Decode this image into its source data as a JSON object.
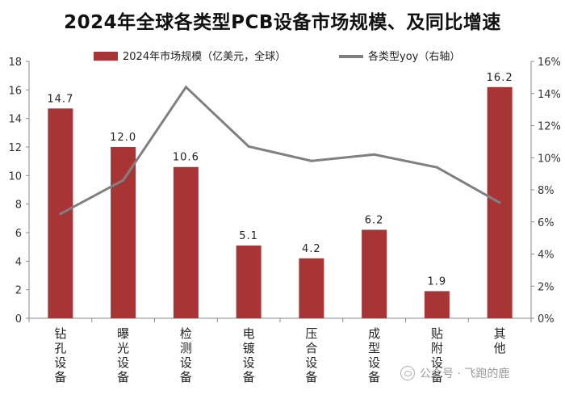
{
  "chart_data": {
    "type": "bar",
    "title": "2024年全球各类型PCB设备市场规模、及同比增速",
    "categories": [
      [
        "钻",
        "孔",
        "设",
        "备"
      ],
      [
        "曝",
        "光",
        "设",
        "备"
      ],
      [
        "检",
        "测",
        "设",
        "备"
      ],
      [
        "电",
        "镀",
        "设",
        "备"
      ],
      [
        "压",
        "合",
        "设",
        "备"
      ],
      [
        "成",
        "型",
        "设",
        "备"
      ],
      [
        "贴",
        "附",
        "设",
        "备"
      ],
      [
        "其",
        "他"
      ]
    ],
    "left_axis": {
      "ylim": [
        0,
        18
      ],
      "ticks": [
        0,
        2,
        4,
        6,
        8,
        10,
        12,
        14,
        16,
        18
      ]
    },
    "right_axis": {
      "ylim": [
        0,
        16
      ],
      "ticks": [
        "0%",
        "2%",
        "4%",
        "6%",
        "8%",
        "10%",
        "12%",
        "14%",
        "16%"
      ]
    },
    "series": [
      {
        "name": "2024年市场规模（亿美元，全球）",
        "type": "bar",
        "axis": "left",
        "color": "#a83535",
        "values": [
          14.7,
          12.0,
          10.6,
          5.1,
          4.2,
          6.2,
          1.9,
          16.2
        ],
        "labels": [
          "14.7",
          "12.0",
          "10.6",
          "5.1",
          "4.2",
          "6.2",
          "1.9",
          "16.2"
        ]
      },
      {
        "name": "各类型yoy（右轴）",
        "type": "line",
        "axis": "right",
        "color": "#808080",
        "values": [
          6.5,
          8.6,
          14.4,
          10.7,
          9.8,
          10.2,
          9.4,
          7.2
        ]
      }
    ],
    "legend_position": "top",
    "grid": false
  },
  "watermark": {
    "text": "公众号 · 飞跑的鹿"
  }
}
